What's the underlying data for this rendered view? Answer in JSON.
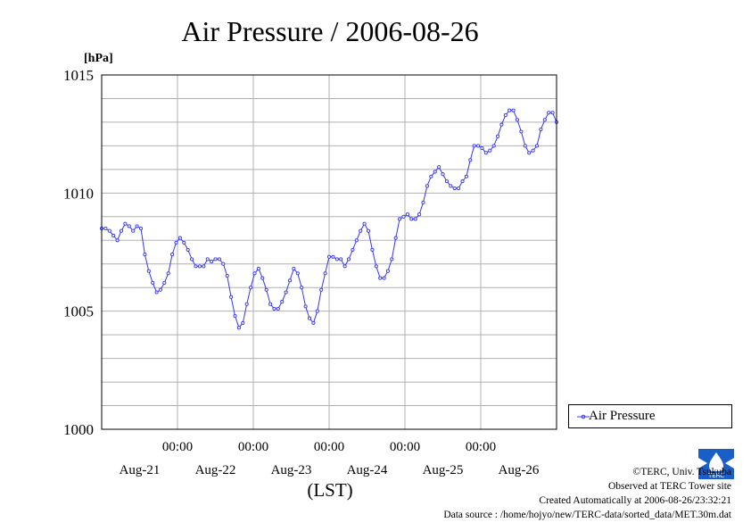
{
  "chart_data": {
    "type": "line",
    "title": "Air Pressure / 2006-08-26",
    "ylabel": "[hPa]",
    "xlabel": "(LST)",
    "ylim": [
      1000,
      1015
    ],
    "yticks": [
      1000,
      1005,
      1010,
      1015
    ],
    "x_time_labels": [
      "00:00",
      "00:00",
      "00:00",
      "00:00",
      "00:00"
    ],
    "x_date_labels": [
      "Aug-21",
      "Aug-22",
      "Aug-23",
      "Aug-24",
      "Aug-25",
      "Aug-26"
    ],
    "grid": true,
    "legend_position": "right",
    "color": "#3333ff",
    "series": [
      {
        "name": "Air Pressure",
        "values": [
          1008.5,
          1008.5,
          1008.4,
          1008.2,
          1008.0,
          1008.4,
          1008.7,
          1008.6,
          1008.4,
          1008.6,
          1008.5,
          1007.4,
          1006.7,
          1006.2,
          1005.8,
          1005.9,
          1006.2,
          1006.6,
          1007.4,
          1007.9,
          1008.1,
          1007.9,
          1007.6,
          1007.2,
          1006.9,
          1006.9,
          1006.9,
          1007.2,
          1007.1,
          1007.2,
          1007.2,
          1007.0,
          1006.5,
          1005.6,
          1004.8,
          1004.3,
          1004.5,
          1005.3,
          1006.0,
          1006.6,
          1006.8,
          1006.4,
          1005.9,
          1005.3,
          1005.1,
          1005.1,
          1005.4,
          1005.8,
          1006.3,
          1006.8,
          1006.6,
          1006.0,
          1005.2,
          1004.7,
          1004.5,
          1005.0,
          1005.9,
          1006.6,
          1007.3,
          1007.3,
          1007.2,
          1007.2,
          1006.9,
          1007.2,
          1007.6,
          1008.0,
          1008.4,
          1008.7,
          1008.4,
          1007.6,
          1006.9,
          1006.4,
          1006.4,
          1006.7,
          1007.2,
          1008.1,
          1008.9,
          1009.0,
          1009.1,
          1008.9,
          1008.9,
          1009.1,
          1009.6,
          1010.3,
          1010.7,
          1010.9,
          1011.1,
          1010.8,
          1010.5,
          1010.3,
          1010.2,
          1010.2,
          1010.5,
          1010.7,
          1011.4,
          1012.0,
          1012.0,
          1011.9,
          1011.7,
          1011.8,
          1012.0,
          1012.4,
          1012.9,
          1013.3,
          1013.5,
          1013.5,
          1013.1,
          1012.6,
          1012.0,
          1011.7,
          1011.8,
          1012.0,
          1012.7,
          1013.1,
          1013.4,
          1013.4,
          1013.0
        ]
      }
    ]
  },
  "credits": {
    "copyright": "©TERC, Univ. Tsukuba",
    "observed": "Observed at TERC Tower site",
    "created": "Created Automatically at 2006-08-26/23:32:21",
    "source": "Data source : /home/hojyo/new/TERC-data/sorted_data/MET.30m.dat"
  },
  "logo_text": "TERC"
}
